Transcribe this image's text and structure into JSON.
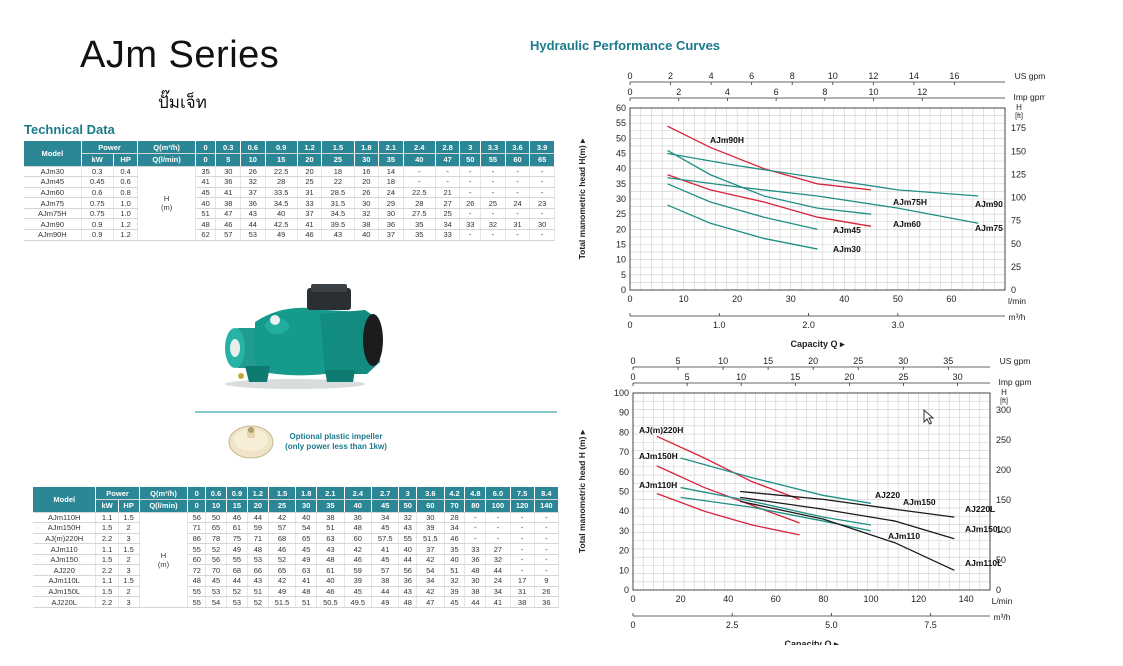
{
  "header": {
    "title": "AJm Series",
    "subtitle": "ปั๊มเจ็ท"
  },
  "technical_data_title": "Technical Data",
  "perf_curves_title": "Hydraulic Performance Curves",
  "impeller_caption": {
    "line1": "Optional plastic impeller",
    "line2": "(only power less than 1kw)"
  },
  "table1": {
    "model_header": "Model",
    "power_header": "Power",
    "kw": "kW",
    "hp": "HP",
    "q_m3h": "Q(m³/h)",
    "q_lmin": "Q(l/min)",
    "h_label": "H",
    "h_unit": "(m)",
    "flows_m3h": [
      "0",
      "0.3",
      "0.6",
      "0.9",
      "1.2",
      "1.5",
      "1.8",
      "2.1",
      "2.4",
      "2.8",
      "3",
      "3.3",
      "3.6",
      "3.9"
    ],
    "flows_lmin": [
      "0",
      "5",
      "10",
      "15",
      "20",
      "25",
      "30",
      "35",
      "40",
      "47",
      "50",
      "55",
      "60",
      "65"
    ],
    "rows": [
      {
        "model": "AJm30",
        "kw": "0.3",
        "hp": "0.4",
        "heads": [
          "35",
          "30",
          "26",
          "22.5",
          "20",
          "18",
          "16",
          "14",
          "-",
          "-",
          "-",
          "-",
          "-",
          "-"
        ]
      },
      {
        "model": "AJm45",
        "kw": "0.45",
        "hp": "0.6",
        "heads": [
          "41",
          "36",
          "32",
          "28",
          "25",
          "22",
          "20",
          "18",
          "-",
          "-",
          "-",
          "-",
          "-",
          "-"
        ]
      },
      {
        "model": "AJm60",
        "kw": "0.6",
        "hp": "0.8",
        "heads": [
          "45",
          "41",
          "37",
          "33.5",
          "31",
          "28.5",
          "26",
          "24",
          "22.5",
          "21",
          "-",
          "-",
          "-",
          "-"
        ]
      },
      {
        "model": "AJm75",
        "kw": "0.75",
        "hp": "1.0",
        "heads": [
          "40",
          "38",
          "36",
          "34.5",
          "33",
          "31.5",
          "30",
          "29",
          "28",
          "27",
          "26",
          "25",
          "24",
          "23"
        ]
      },
      {
        "model": "AJm75H",
        "kw": "0.75",
        "hp": "1.0",
        "heads": [
          "51",
          "47",
          "43",
          "40",
          "37",
          "34.5",
          "32",
          "30",
          "27.5",
          "25",
          "-",
          "-",
          "-",
          "-"
        ]
      },
      {
        "model": "AJm90",
        "kw": "0.9",
        "hp": "1.2",
        "heads": [
          "48",
          "46",
          "44",
          "42.5",
          "41",
          "39.5",
          "38",
          "36",
          "35",
          "34",
          "33",
          "32",
          "31",
          "30"
        ]
      },
      {
        "model": "AJm90H",
        "kw": "0.9",
        "hp": "1.2",
        "heads": [
          "62",
          "57",
          "53",
          "49",
          "46",
          "43",
          "40",
          "37",
          "35",
          "33",
          "-",
          "-",
          "-",
          "-"
        ]
      }
    ]
  },
  "table2": {
    "model_header": "Model",
    "power_header": "Power",
    "kw": "kW",
    "hp": "HP",
    "q_m3h": "Q(m³/h)",
    "q_lmin": "Q(l/min)",
    "h_label": "H",
    "h_unit": "(m)",
    "flows_m3h": [
      "0",
      "0.6",
      "0.9",
      "1.2",
      "1.5",
      "1.8",
      "2.1",
      "2.4",
      "2.7",
      "3",
      "3.6",
      "4.2",
      "4.8",
      "6.0",
      "7.5",
      "8.4"
    ],
    "flows_lmin": [
      "0",
      "10",
      "15",
      "20",
      "25",
      "30",
      "35",
      "40",
      "45",
      "50",
      "60",
      "70",
      "80",
      "100",
      "120",
      "140"
    ],
    "rows": [
      {
        "model": "AJm110H",
        "kw": "1.1",
        "hp": "1.5",
        "heads": [
          "56",
          "50",
          "46",
          "44",
          "42",
          "40",
          "38",
          "36",
          "34",
          "32",
          "30",
          "28",
          "-",
          "-",
          "-",
          "-"
        ]
      },
      {
        "model": "AJm150H",
        "kw": "1.5",
        "hp": "2",
        "heads": [
          "71",
          "65",
          "61",
          "59",
          "57",
          "54",
          "51",
          "48",
          "45",
          "43",
          "39",
          "34",
          "-",
          "-",
          "-",
          "-"
        ]
      },
      {
        "model": "AJ(m)220H",
        "kw": "2.2",
        "hp": "3",
        "heads": [
          "86",
          "78",
          "75",
          "71",
          "68",
          "65",
          "63",
          "60",
          "57.5",
          "55",
          "51.5",
          "46",
          "-",
          "-",
          "-",
          "-"
        ]
      },
      {
        "model": "AJm110",
        "kw": "1.1",
        "hp": "1.5",
        "heads": [
          "55",
          "52",
          "49",
          "48",
          "46",
          "45",
          "43",
          "42",
          "41",
          "40",
          "37",
          "35",
          "33",
          "27",
          "-",
          "-"
        ]
      },
      {
        "model": "AJm150",
        "kw": "1.5",
        "hp": "2",
        "heads": [
          "60",
          "56",
          "55",
          "53",
          "52",
          "49",
          "48",
          "46",
          "45",
          "44",
          "42",
          "40",
          "36",
          "32",
          "-",
          "-"
        ]
      },
      {
        "model": "AJ220",
        "kw": "2.2",
        "hp": "3",
        "heads": [
          "72",
          "70",
          "68",
          "66",
          "65",
          "63",
          "61",
          "59",
          "57",
          "56",
          "54",
          "51",
          "48",
          "44",
          "-",
          "-"
        ]
      },
      {
        "model": "AJm110L",
        "kw": "1.1",
        "hp": "1.5",
        "heads": [
          "48",
          "45",
          "44",
          "43",
          "42",
          "41",
          "40",
          "39",
          "38",
          "36",
          "34",
          "32",
          "30",
          "24",
          "17",
          "9"
        ]
      },
      {
        "model": "AJm150L",
        "kw": "1.5",
        "hp": "2",
        "heads": [
          "55",
          "53",
          "52",
          "51",
          "49",
          "48",
          "46",
          "45",
          "44",
          "43",
          "42",
          "39",
          "38",
          "34",
          "31",
          "26"
        ]
      },
      {
        "model": "AJ220L",
        "kw": "2.2",
        "hp": "3",
        "heads": [
          "55",
          "54",
          "53",
          "52",
          "51.5",
          "51",
          "50.5",
          "49.5",
          "49",
          "48",
          "47",
          "45",
          "44",
          "41",
          "38",
          "36"
        ]
      }
    ]
  },
  "chart_data": [
    {
      "type": "line",
      "xlabel": "Capacity Q",
      "ylabel": "Total manometric head H(m)",
      "x_unit": "l/min",
      "x_lim": [
        0,
        70
      ],
      "x_ticks": [
        "0",
        "10",
        "20",
        "30",
        "40",
        "50",
        "60"
      ],
      "y_lim": [
        0,
        60
      ],
      "y_ticks": [
        "0",
        "5",
        "10",
        "15",
        "20",
        "25",
        "30",
        "35",
        "40",
        "45",
        "50",
        "55",
        "60"
      ],
      "m3h_label": "m³/h",
      "m3h_ticks": [
        "0",
        "1.0",
        "2.0",
        "3.0"
      ],
      "us_gpm_label": "US gpm",
      "us_gpm_ticks": [
        "0",
        "2",
        "4",
        "6",
        "8",
        "10",
        "12",
        "14",
        "16"
      ],
      "imp_gpm_label": "Imp gpm",
      "imp_gpm_ticks": [
        "0",
        "2",
        "4",
        "6",
        "8",
        "10",
        "12"
      ],
      "ft_label": "H",
      "ft_unit": "[ft]",
      "ft_ticks": [
        "0",
        "25",
        "50",
        "75",
        "100",
        "125",
        "150",
        "175"
      ],
      "series": [
        {
          "name": "AJm90H",
          "color": "#d8223a",
          "x": [
            7,
            15,
            25,
            35,
            45
          ],
          "y": [
            54,
            47,
            40,
            35,
            33
          ]
        },
        {
          "name": "AJm60",
          "color": "#d8223a",
          "x": [
            7,
            15,
            25,
            35,
            45
          ],
          "y": [
            38,
            33,
            29,
            24,
            21
          ]
        },
        {
          "name": "AJm75H",
          "color": "#1f8f86",
          "x": [
            7,
            15,
            25,
            35,
            45
          ],
          "y": [
            46,
            38,
            31,
            27,
            25
          ]
        },
        {
          "name": "AJm90",
          "color": "#1f8f86",
          "x": [
            7,
            20,
            35,
            50,
            65
          ],
          "y": [
            45,
            41,
            37,
            33,
            31
          ]
        },
        {
          "name": "AJm75",
          "color": "#1f8f86",
          "x": [
            7,
            20,
            35,
            50,
            65
          ],
          "y": [
            37,
            34,
            31,
            27,
            22
          ]
        },
        {
          "name": "AJm45",
          "color": "#1f8f86",
          "x": [
            7,
            15,
            25,
            35
          ],
          "y": [
            35,
            29,
            24,
            20
          ]
        },
        {
          "name": "AJm30",
          "color": "#1f8f86",
          "x": [
            7,
            15,
            25,
            35
          ],
          "y": [
            28,
            22,
            17,
            13.5
          ]
        }
      ]
    },
    {
      "type": "line",
      "xlabel": "Capacity Q",
      "ylabel": "Total manometric head H (m)",
      "x_unit": "L/min",
      "x_lim": [
        0,
        150
      ],
      "x_ticks": [
        "0",
        "20",
        "40",
        "60",
        "80",
        "100",
        "120",
        "140"
      ],
      "y_lim": [
        0,
        100
      ],
      "y_ticks": [
        "0",
        "10",
        "20",
        "30",
        "40",
        "50",
        "60",
        "70",
        "80",
        "90",
        "100"
      ],
      "m3h_label": "m³/h",
      "m3h_ticks": [
        "0",
        "2.5",
        "5.0",
        "7.5"
      ],
      "us_gpm_label": "US gpm",
      "us_gpm_ticks": [
        "0",
        "5",
        "10",
        "15",
        "20",
        "25",
        "30",
        "35"
      ],
      "imp_gpm_label": "Imp gpm",
      "imp_gpm_ticks": [
        "0",
        "5",
        "10",
        "15",
        "20",
        "25",
        "30"
      ],
      "ft_label": "H",
      "ft_unit": "[ft]",
      "ft_ticks": [
        "0",
        "50",
        "100",
        "150",
        "200",
        "250",
        "300"
      ],
      "series": [
        {
          "name": "AJ(m)220H",
          "color": "#d8223a",
          "x": [
            10,
            30,
            50,
            70
          ],
          "y": [
            78,
            67,
            55,
            46
          ]
        },
        {
          "name": "AJm150H",
          "color": "#d8223a",
          "x": [
            10,
            30,
            50,
            70
          ],
          "y": [
            63,
            52,
            43,
            34
          ]
        },
        {
          "name": "AJm110H",
          "color": "#d8223a",
          "x": [
            10,
            30,
            50,
            70
          ],
          "y": [
            49,
            40,
            33,
            28
          ]
        },
        {
          "name": "AJ220",
          "color": "#1f8f86",
          "x": [
            20,
            50,
            80,
            100
          ],
          "y": [
            67,
            57,
            48,
            44
          ]
        },
        {
          "name": "AJm150",
          "color": "#1f8f86",
          "x": [
            20,
            50,
            80,
            100
          ],
          "y": [
            52,
            45,
            37,
            33
          ]
        },
        {
          "name": "AJm110",
          "color": "#1f8f86",
          "x": [
            20,
            50,
            80,
            100
          ],
          "y": [
            47,
            42,
            35,
            30
          ]
        },
        {
          "name": "AJ220L",
          "color": "#1a1a1a",
          "x": [
            45,
            80,
            110,
            135
          ],
          "y": [
            50,
            46,
            41,
            37
          ]
        },
        {
          "name": "AJm150L",
          "color": "#1a1a1a",
          "x": [
            45,
            80,
            110,
            135
          ],
          "y": [
            47,
            41,
            35,
            26
          ]
        },
        {
          "name": "AJm110L",
          "color": "#1a1a1a",
          "x": [
            45,
            80,
            110,
            135
          ],
          "y": [
            45,
            36,
            24,
            10
          ]
        }
      ]
    }
  ],
  "colors": {
    "accent": "#2b8695",
    "red": "#d8223a",
    "teal": "#1f8f86"
  }
}
